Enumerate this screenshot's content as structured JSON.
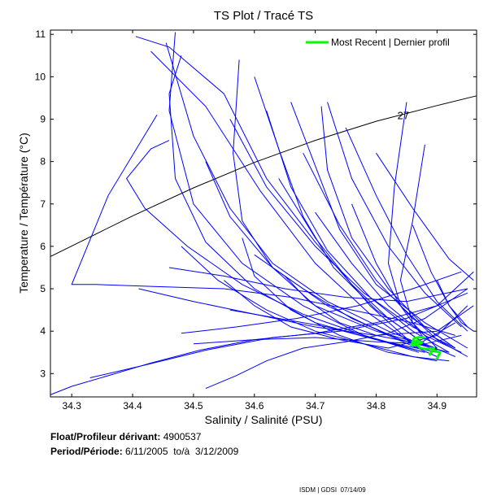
{
  "chart_data": {
    "type": "line",
    "title": "TS Plot / Tracé TS",
    "xlabel": "Salinity / Salinité (PSU)",
    "ylabel": "Temperature / Température (°C)",
    "xlim": [
      34.265,
      34.965
    ],
    "ylim": [
      2.45,
      11.1
    ],
    "xticks": [
      34.3,
      34.4,
      34.5,
      34.6,
      34.7,
      34.8,
      34.9
    ],
    "yticks": [
      3,
      4,
      5,
      6,
      7,
      8,
      9,
      10,
      11
    ],
    "grid": false,
    "legend": {
      "position": "top-right",
      "entries": [
        "Most Recent | Dernier profil"
      ]
    },
    "density_contour": {
      "label": "27",
      "label_x": 34.835,
      "label_y": 9.0,
      "x": [
        34.265,
        34.4,
        34.5,
        34.6,
        34.7,
        34.8,
        34.9,
        34.965
      ],
      "y": [
        5.76,
        6.72,
        7.38,
        7.98,
        8.5,
        8.95,
        9.32,
        9.55
      ]
    },
    "series": [
      {
        "name": "Most Recent | Dernier profil",
        "color": "#00ff00",
        "x": [
          34.9,
          34.905,
          34.893,
          34.888,
          34.895,
          34.882,
          34.872,
          34.866,
          34.875,
          34.868,
          34.862,
          34.866,
          34.858,
          34.862,
          34.872,
          34.88
        ],
        "y": [
          3.35,
          3.5,
          3.55,
          3.45,
          3.6,
          3.58,
          3.6,
          3.7,
          3.73,
          3.78,
          3.74,
          3.69,
          3.66,
          3.83,
          3.86,
          3.85
        ]
      },
      {
        "name": "Profiles",
        "color": "#0000ff",
        "profiles": [
          {
            "x": [
              34.405,
              34.46,
              34.55,
              34.62,
              34.7,
              34.79,
              34.86
            ],
            "y": [
              10.95,
              10.7,
              9.6,
              7.6,
              6.1,
              4.6,
              3.7
            ]
          },
          {
            "x": [
              34.47,
              34.46,
              34.5,
              34.58,
              34.68,
              34.78,
              34.87
            ],
            "y": [
              11.05,
              9.2,
              7.0,
              5.6,
              4.6,
              3.9,
              3.5
            ]
          },
          {
            "x": [
              34.455,
              34.5,
              34.56,
              34.63,
              34.72,
              34.82,
              34.9
            ],
            "y": [
              10.8,
              8.6,
              6.9,
              5.6,
              4.7,
              4.0,
              3.55
            ]
          },
          {
            "x": [
              34.43,
              34.52,
              34.61,
              34.7,
              34.79,
              34.87
            ],
            "y": [
              10.6,
              9.3,
              7.3,
              5.6,
              4.4,
              3.6
            ]
          },
          {
            "x": [
              34.48,
              34.46,
              34.47,
              34.52,
              34.6,
              34.7,
              34.8,
              34.9
            ],
            "y": [
              10.5,
              9.6,
              7.6,
              6.1,
              5.0,
              4.2,
              3.8,
              3.5
            ]
          },
          {
            "x": [
              34.575,
              34.565,
              34.58,
              34.63,
              34.7,
              34.8,
              34.9
            ],
            "y": [
              10.4,
              8.2,
              6.6,
              5.5,
              4.6,
              4.0,
              3.6
            ]
          },
          {
            "x": [
              34.6,
              34.64,
              34.68,
              34.73,
              34.8,
              34.88
            ],
            "y": [
              10.0,
              8.3,
              6.7,
              5.5,
              4.5,
              3.7
            ]
          },
          {
            "x": [
              34.66,
              34.7,
              34.74,
              34.8,
              34.88,
              34.95
            ],
            "y": [
              9.4,
              7.9,
              6.4,
              5.1,
              4.2,
              3.6
            ]
          },
          {
            "x": [
              34.72,
              34.76,
              34.82,
              34.88,
              34.94
            ],
            "y": [
              9.4,
              7.6,
              6.0,
              4.9,
              4.1
            ]
          },
          {
            "x": [
              34.75,
              34.8,
              34.85,
              34.9,
              34.95
            ],
            "y": [
              8.8,
              7.2,
              5.8,
              4.7,
              4.0
            ]
          },
          {
            "x": [
              34.85,
              34.83,
              34.82,
              34.84,
              34.88
            ],
            "y": [
              9.4,
              7.4,
              5.6,
              4.6,
              3.8
            ]
          },
          {
            "x": [
              34.88,
              34.86,
              34.84,
              34.86,
              34.9
            ],
            "y": [
              8.4,
              6.6,
              5.2,
              4.2,
              3.6
            ]
          },
          {
            "x": [
              34.8,
              34.86,
              34.92,
              34.96
            ],
            "y": [
              8.2,
              6.9,
              5.7,
              5.2
            ]
          },
          {
            "x": [
              34.56,
              34.62,
              34.7,
              34.78,
              34.86,
              34.93
            ],
            "y": [
              9.0,
              7.4,
              6.0,
              4.9,
              4.1,
              3.6
            ]
          },
          {
            "x": [
              34.52,
              34.56,
              34.63,
              34.72,
              34.82,
              34.9
            ],
            "y": [
              8.0,
              6.7,
              5.5,
              4.6,
              3.9,
              3.4
            ]
          },
          {
            "x": [
              34.46,
              34.43,
              34.39,
              34.42,
              34.49,
              34.58,
              34.68,
              34.78,
              34.88
            ],
            "y": [
              8.5,
              8.3,
              7.6,
              6.9,
              6.0,
              5.1,
              4.4,
              3.9,
              3.5
            ]
          },
          {
            "x": [
              34.44,
              34.36,
              34.3,
              34.34,
              34.44,
              34.55,
              34.66,
              34.76,
              34.86,
              34.93
            ],
            "y": [
              9.1,
              7.2,
              5.1,
              5.1,
              5.05,
              5.0,
              4.8,
              4.5,
              4.2,
              3.9
            ]
          },
          {
            "x": [
              34.26,
              34.3,
              34.36,
              34.43,
              34.51,
              34.6,
              34.7,
              34.8,
              34.9,
              34.96
            ],
            "y": [
              2.5,
              2.7,
              2.95,
              3.25,
              3.55,
              3.8,
              3.95,
              4.2,
              4.6,
              5.4
            ]
          },
          {
            "x": [
              34.33,
              34.42,
              34.52,
              34.63,
              34.74,
              34.85,
              34.95
            ],
            "y": [
              2.9,
              3.2,
              3.55,
              3.85,
              4.0,
              4.3,
              4.9
            ]
          },
          {
            "x": [
              34.52,
              34.57,
              34.62,
              34.68,
              34.75,
              34.82,
              34.88,
              34.95
            ],
            "y": [
              2.65,
              2.95,
              3.3,
              3.6,
              3.75,
              3.95,
              4.3,
              5.0
            ]
          },
          {
            "x": [
              34.48,
              34.57,
              34.67,
              34.77,
              34.86,
              34.94
            ],
            "y": [
              3.95,
              4.1,
              4.3,
              4.6,
              5.0,
              5.4
            ]
          },
          {
            "x": [
              34.46,
              34.55,
              34.65,
              34.75,
              34.85,
              34.95
            ],
            "y": [
              5.5,
              5.3,
              5.0,
              4.8,
              4.7,
              5.0
            ]
          },
          {
            "x": [
              34.41,
              34.5,
              34.6,
              34.7,
              34.8,
              34.9,
              34.96
            ],
            "y": [
              5.0,
              4.7,
              4.4,
              4.1,
              3.9,
              4.0,
              4.6
            ]
          },
          {
            "x": [
              34.55,
              34.6,
              34.66,
              34.74,
              34.82,
              34.9,
              34.95
            ],
            "y": [
              5.2,
              4.6,
              4.1,
              3.8,
              3.6,
              3.9,
              4.6
            ]
          },
          {
            "x": [
              34.65,
              34.69,
              34.74,
              34.8,
              34.87,
              34.93
            ],
            "y": [
              5.3,
              4.7,
              4.2,
              3.9,
              3.7,
              4.2
            ]
          },
          {
            "x": [
              34.5,
              34.6,
              34.7,
              34.8,
              34.88,
              34.94
            ],
            "y": [
              3.7,
              3.8,
              3.85,
              3.75,
              3.7,
              3.9
            ]
          },
          {
            "x": [
              34.56,
              34.64,
              34.72,
              34.8,
              34.88
            ],
            "y": [
              4.5,
              4.3,
              4.1,
              3.8,
              3.5
            ]
          },
          {
            "x": [
              34.6,
              34.68,
              34.76,
              34.84,
              34.92
            ],
            "y": [
              5.8,
              5.0,
              4.3,
              3.8,
              3.5
            ]
          },
          {
            "x": [
              34.7,
              34.76,
              34.82,
              34.88,
              34.94
            ],
            "y": [
              6.8,
              5.6,
              4.6,
              3.9,
              3.5
            ]
          },
          {
            "x": [
              34.76,
              34.8,
              34.84,
              34.9,
              34.95
            ],
            "y": [
              7.0,
              5.6,
              4.6,
              3.8,
              3.4
            ]
          },
          {
            "x": [
              34.64,
              34.7,
              34.76,
              34.82,
              34.88,
              34.93
            ],
            "y": [
              7.6,
              6.2,
              5.1,
              4.3,
              3.7,
              3.4
            ]
          },
          {
            "x": [
              34.58,
              34.6,
              34.66,
              34.74,
              34.82,
              34.9
            ],
            "y": [
              6.2,
              5.3,
              4.5,
              3.9,
              3.5,
              3.3
            ]
          },
          {
            "x": [
              34.48,
              34.54,
              34.62,
              34.7,
              34.78,
              34.86,
              34.92
            ],
            "y": [
              6.0,
              5.2,
              4.5,
              4.0,
              3.7,
              3.4,
              3.3
            ]
          },
          {
            "x": [
              34.62,
              34.66,
              34.72,
              34.79,
              34.86,
              34.92
            ],
            "y": [
              9.2,
              7.4,
              5.9,
              4.8,
              4.0,
              3.5
            ]
          },
          {
            "x": [
              34.68,
              34.74,
              34.8,
              34.86,
              34.92
            ],
            "y": [
              8.2,
              6.5,
              5.2,
              4.3,
              3.7
            ]
          },
          {
            "x": [
              34.71,
              34.72,
              34.76,
              34.82,
              34.88,
              34.93
            ],
            "y": [
              9.3,
              7.8,
              6.2,
              5.0,
              4.1,
              3.6
            ]
          },
          {
            "x": [
              34.9,
              34.92,
              34.94,
              34.96
            ],
            "y": [
              5.2,
              4.6,
              4.2,
              4.0
            ]
          },
          {
            "x": [
              34.86,
              34.89,
              34.92,
              34.95
            ],
            "y": [
              6.5,
              5.4,
              4.6,
              4.1
            ]
          }
        ]
      }
    ]
  },
  "info": {
    "float_label": "Float/Profileur dérivant:",
    "float_id": "4900537",
    "period_label": "Period/Période:",
    "period_start": "6/11/2005",
    "period_sep": "to/à",
    "period_end": "3/12/2009"
  },
  "footer": "ISDM | GDSI  07/14/09"
}
